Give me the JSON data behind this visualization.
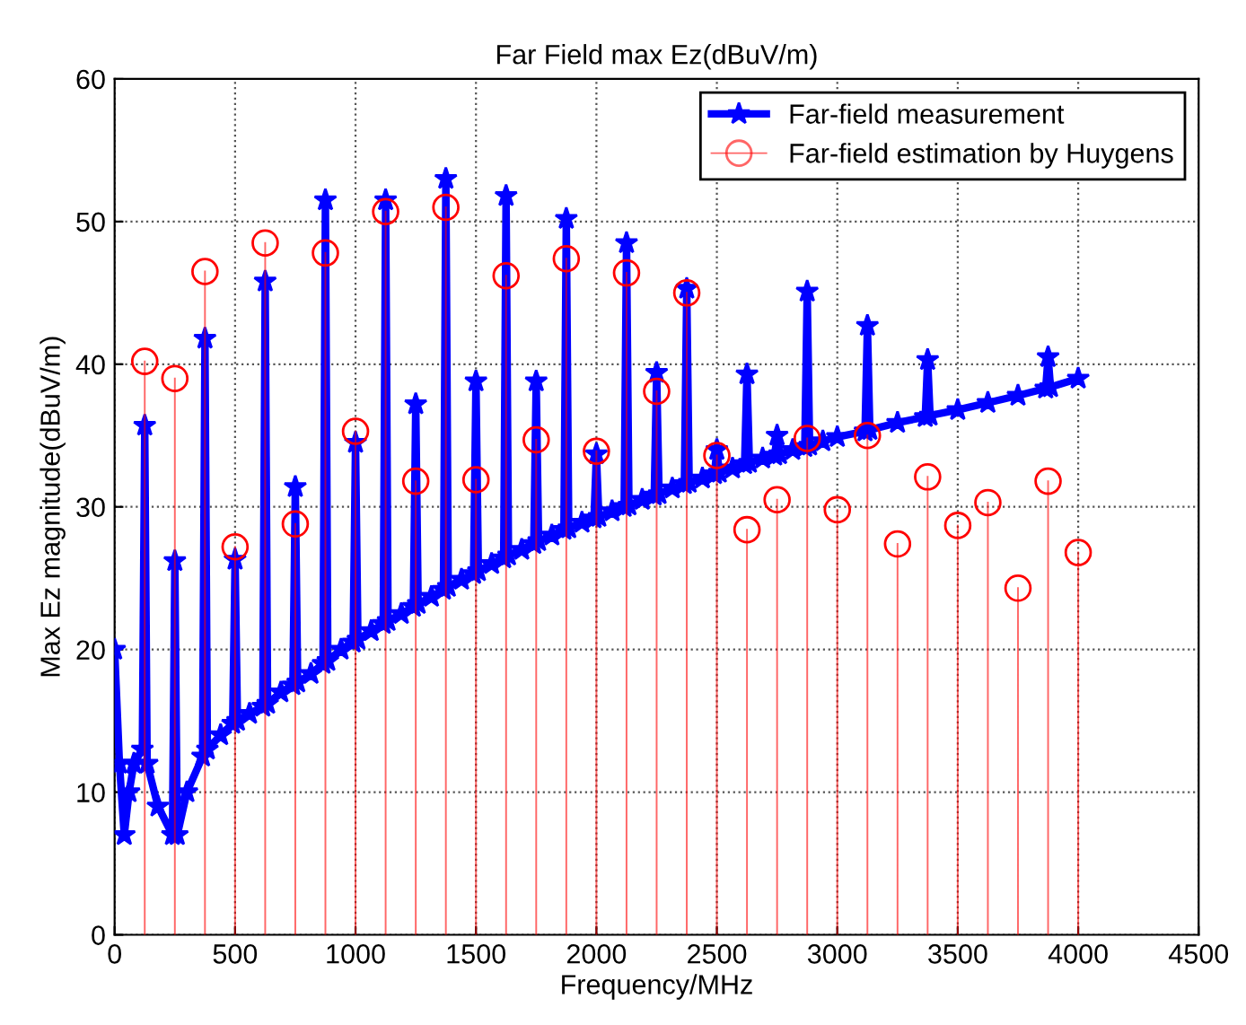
{
  "chart_data": {
    "type": "line",
    "title": "Far Field max Ez(dBuV/m)",
    "xlabel": "Frequency/MHz",
    "ylabel": "Max Ez magnitude(dBuV/m)",
    "xlim": [
      0,
      4500
    ],
    "xticks": [
      0,
      500,
      1000,
      1500,
      2000,
      2500,
      3000,
      3500,
      4000,
      4500
    ],
    "ylim": [
      0,
      60
    ],
    "yticks": [
      0,
      10,
      20,
      30,
      40,
      50,
      60
    ],
    "grid": true,
    "legend": "top right",
    "series": [
      {
        "name": "Far-field measurement",
        "color": "#0000ff",
        "marker": "star",
        "line_style": "solid",
        "x": [
          0,
          20,
          40,
          60,
          80,
          115,
          125,
          135,
          180,
          240,
          250,
          260,
          300,
          365,
          375,
          385,
          440,
          490,
          500,
          510,
          560,
          615,
          625,
          635,
          690,
          740,
          750,
          760,
          815,
          865,
          875,
          885,
          940,
          990,
          1000,
          1010,
          1065,
          1115,
          1125,
          1135,
          1190,
          1240,
          1250,
          1260,
          1315,
          1365,
          1375,
          1385,
          1440,
          1490,
          1500,
          1510,
          1565,
          1615,
          1625,
          1635,
          1690,
          1740,
          1750,
          1760,
          1815,
          1865,
          1875,
          1885,
          1940,
          1990,
          2000,
          2010,
          2065,
          2115,
          2125,
          2135,
          2190,
          2240,
          2250,
          2260,
          2315,
          2365,
          2375,
          2385,
          2440,
          2490,
          2500,
          2510,
          2565,
          2615,
          2625,
          2635,
          2690,
          2740,
          2750,
          2760,
          2815,
          2865,
          2875,
          2885,
          2940,
          3000,
          3115,
          3125,
          3135,
          3250,
          3365,
          3375,
          3385,
          3500,
          3625,
          3750,
          3865,
          3875,
          3885,
          4000
        ],
        "values": [
          20,
          12,
          7,
          10,
          12,
          13,
          35.7,
          12,
          9,
          7,
          26.2,
          7,
          10,
          12.5,
          41.8,
          13,
          14,
          14.8,
          26.3,
          15,
          15.5,
          16,
          45.8,
          16.2,
          17,
          17.5,
          31.4,
          17.7,
          18.3,
          19,
          51.5,
          19.2,
          20,
          20.5,
          34.5,
          20.7,
          21.3,
          21.8,
          51.5,
          22,
          22.5,
          23,
          37.2,
          23.2,
          23.7,
          24.2,
          53.0,
          24.4,
          24.9,
          25.3,
          38.8,
          25.5,
          26,
          26.4,
          51.8,
          26.6,
          27,
          27.4,
          38.8,
          27.6,
          28,
          28.4,
          50.2,
          28.5,
          28.9,
          29.2,
          33.7,
          29.3,
          29.7,
          30,
          48.5,
          30.1,
          30.5,
          30.8,
          39.4,
          30.9,
          31.3,
          31.6,
          45.3,
          31.7,
          32,
          32.3,
          34.0,
          32.4,
          32.7,
          33,
          39.3,
          33.1,
          33.4,
          33.6,
          35.0,
          33.7,
          34,
          34.2,
          45.1,
          34.3,
          34.6,
          34.9,
          35.3,
          42.7,
          35.4,
          35.9,
          36.3,
          40.3,
          36.4,
          36.8,
          37.3,
          37.8,
          38.3,
          40.5,
          38.4,
          39
        ]
      },
      {
        "name": "Far-field estimation by Huygens",
        "type": "lollipop",
        "color": "#ff0000",
        "marker": "circle",
        "x": [
          125,
          250,
          375,
          500,
          625,
          750,
          875,
          1000,
          1125,
          1250,
          1375,
          1500,
          1625,
          1750,
          1875,
          2000,
          2125,
          2250,
          2375,
          2500,
          2625,
          2750,
          2875,
          3000,
          3125,
          3250,
          3375,
          3500,
          3625,
          3750,
          3875,
          4000
        ],
        "values": [
          40.2,
          39.0,
          46.5,
          27.2,
          48.5,
          28.8,
          47.8,
          35.3,
          50.7,
          31.8,
          51.0,
          31.9,
          46.2,
          34.7,
          47.4,
          33.9,
          46.4,
          38.1,
          45.0,
          33.6,
          28.4,
          30.5,
          34.8,
          29.8,
          35.0,
          27.4,
          32.1,
          28.7,
          30.3,
          24.3,
          31.8,
          26.8
        ]
      }
    ]
  }
}
